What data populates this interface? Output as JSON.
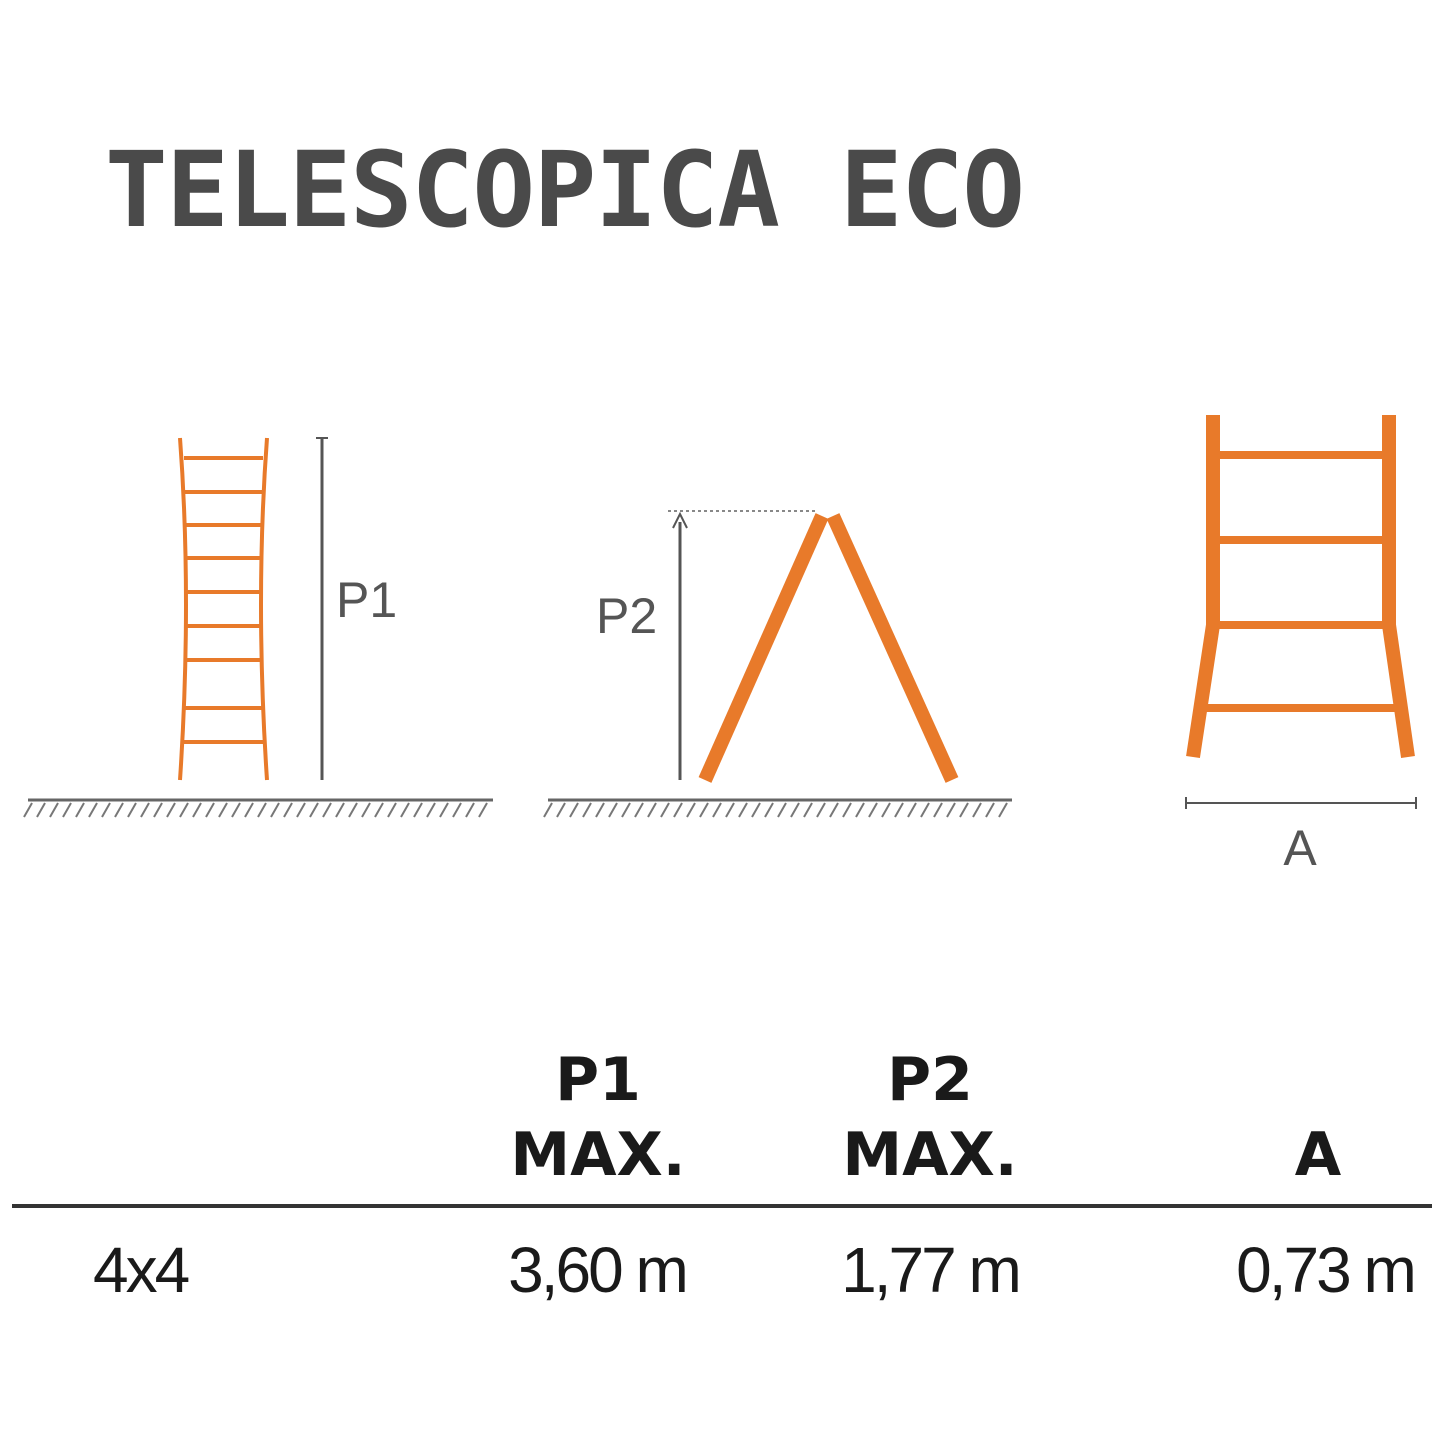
{
  "header": {
    "title": "TELESCOPICA ECO"
  },
  "diagram": {
    "labels": [
      "P1",
      "P2",
      "A"
    ]
  },
  "table": {
    "header": [
      [
        "P1",
        "MAX."
      ],
      [
        "P2",
        "MAX."
      ],
      [
        "A"
      ]
    ],
    "rows": [
      [
        "4x4",
        "3,60 m",
        "1,77 m",
        "0,73 m"
      ]
    ]
  }
}
